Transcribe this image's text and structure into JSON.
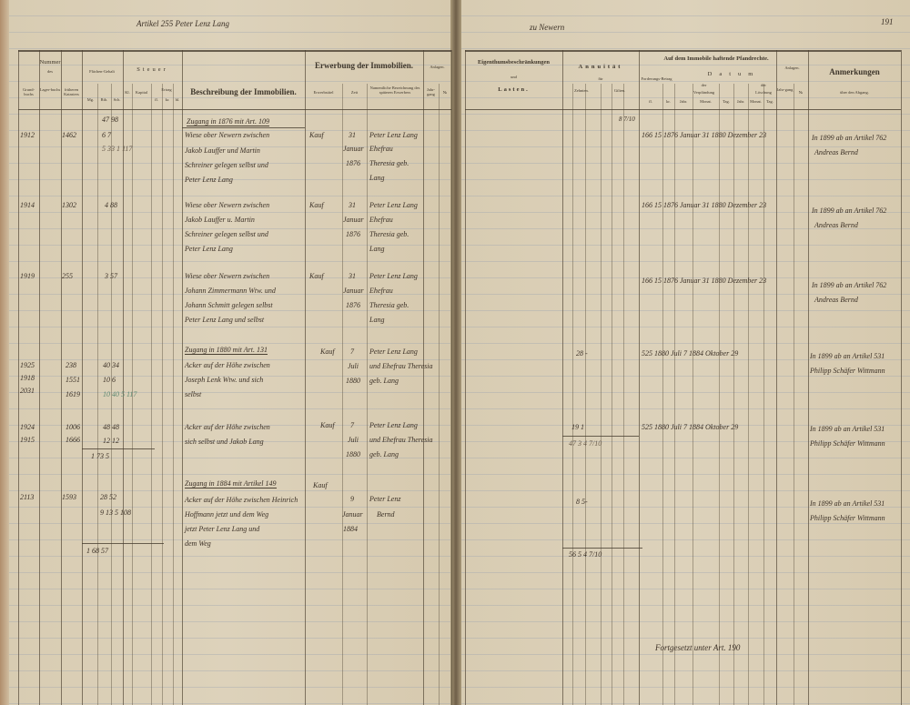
{
  "top": {
    "article": "Artikel 255 Peter Lenz Lang",
    "location": "zu Newern",
    "page_number": "191"
  },
  "left_headers": {
    "nummer": "Nummer",
    "des": "des",
    "grundbuch": "Grund-buchs",
    "lagerbuch": "Lager-buchs",
    "kataster": "früheren Katasters",
    "flaechen": "Flächen-Gehalt",
    "flaeche_units": [
      "Mg.",
      "Rth.",
      "Sch."
    ],
    "steuer": "Steuer",
    "steuer_cols": [
      "Kl.",
      "Kapital",
      "Ertrag",
      "fl.",
      "kr.",
      "hl."
    ],
    "beschreibung": "Beschreibung der Immobilien.",
    "erwerbung": "Erwerbung der Immobilien.",
    "erwerbstitel": "Erwerbstitel",
    "zeit": "Zeit",
    "vorbesitzer": "Namentliche Bezeichnung des späteren Erwerbers",
    "anlagen": "Anlagen.",
    "jahrgang": "Jahr-gang",
    "nr": "№"
  },
  "right_headers": {
    "eigentum": "Eigenthumsbeschränkungen",
    "und": "und",
    "lasten": "Lasten.",
    "annuitaet": "Annuität",
    "fuer": "für",
    "zehnten": "Zehnten.",
    "gilten": "Gilten.",
    "money_units": [
      "fl.",
      "kr.",
      "hl."
    ],
    "pfandrechte": "Auf dem Immobile haftende Pfandrechte.",
    "forderung": "Forderungs-Betrag",
    "fl": "fl.",
    "kr": "kr.",
    "datum": "Datum",
    "der": "der",
    "verpfaendung": "Verpfändung",
    "loeschung": "Löschung",
    "date_units": [
      "Jahr.",
      "Monat.",
      "Tag."
    ],
    "anlagen": "Anlagen.",
    "jahrgang": "Jahr-gang",
    "nr": "№",
    "anmerkungen": "Anmerkungen",
    "abgang": "über den Abgang."
  },
  "entries": [
    {
      "heading": "Zugang in 1876 mit Art. 109",
      "area_total": "47 98",
      "grundbuch": "1912",
      "kataster": "1462",
      "area": "6 7",
      "area2": "5 33 1 117",
      "desc": [
        "Wiese ober Newern zwischen",
        "Jakob Lauffer und Martin",
        "Schreiner gelegen selbst und",
        "Peter Lenz Lang"
      ],
      "titel": "Kauf",
      "zeit": [
        "31",
        "Januar",
        "1876"
      ],
      "erwerber": [
        "Peter Lenz Lang",
        "Ehefrau",
        "Theresia geb.",
        "Lang"
      ],
      "annuity": "8 7/10",
      "pfand": "166  15  1876 Januar 31  1880 Dezember 23",
      "remark": [
        "In 1899 ab an Artikel 762",
        "Andreas Bernd"
      ]
    },
    {
      "grundbuch": "1914",
      "kataster": "1302",
      "area": "4 88",
      "desc": [
        "Wiese ober Newern zwischen",
        "Jakob Lauffer u. Martin",
        "Schreiner gelegen selbst und",
        "Peter Lenz Lang"
      ],
      "titel": "Kauf",
      "zeit": [
        "31",
        "Januar",
        "1876"
      ],
      "erwerber": [
        "Peter Lenz Lang",
        "Ehefrau",
        "Theresia geb.",
        "Lang"
      ],
      "pfand": "166  15  1876 Januar 31  1880 Dezember 23",
      "remark": [
        "In 1899 ab an Artikel 762",
        "Andreas Bernd"
      ]
    },
    {
      "grundbuch": "1919",
      "kataster": "255",
      "area": "3 57",
      "desc": [
        "Wiese ober Newern zwischen",
        "Johann Zimmermann Wtw. und",
        "Johann Schmitt gelegen selbst",
        "Peter Lenz Lang und selbst"
      ],
      "titel": "Kauf",
      "zeit": [
        "31",
        "Januar",
        "1876"
      ],
      "erwerber": [
        "Peter Lenz Lang",
        "Ehefrau",
        "Theresia geb.",
        "Lang"
      ],
      "pfand": "166  15  1876 Januar 31  1880 Dezember 23",
      "remark": [
        "In 1899 ab an Artikel 762",
        "Andreas Bernd"
      ]
    },
    {
      "heading": "Zugang in 1880 mit Art. 131",
      "grundbuch": [
        "1925",
        "1918",
        "2031"
      ],
      "kataster": [
        "238",
        "1551",
        "1619"
      ],
      "area": [
        "40 34",
        "10 6",
        "10 40 5 117"
      ],
      "desc": [
        "Acker auf der Höhe zwischen",
        "Joseph Lenk Wtw. und sich",
        "selbst"
      ],
      "titel": "Kauf",
      "zeit": [
        "7",
        "Juli",
        "1880"
      ],
      "erwerber": [
        "Peter Lenz Lang",
        "und Ehefrau Theresia",
        "geb. Lang"
      ],
      "annuity": "28 -",
      "pfand": "525  1880 Juli 7  1884 Oktober 29",
      "remark": [
        "In 1899 ab an Artikel 531",
        "Philipp Schäfer Wittmann"
      ]
    },
    {
      "grundbuch": [
        "1924",
        "1915"
      ],
      "kataster": [
        "1006",
        "1666"
      ],
      "area": [
        "48 48",
        "12 12",
        "1 73 5"
      ],
      "desc": [
        "Acker auf der Höhe zwischen",
        "sich selbst und Jakob Lang"
      ],
      "titel": "Kauf",
      "zeit": [
        "7",
        "Juli",
        "1880"
      ],
      "erwerber": [
        "Peter Lenz Lang",
        "und Ehefrau Theresia",
        "geb. Lang"
      ],
      "annuity": "19 1",
      "annuity_sum": "47 3   4 7/10",
      "pfand": "525  1880 Juli 7  1884 Oktober 29",
      "remark": [
        "In 1899 ab an Artikel 531",
        "Philipp Schäfer Wittmann"
      ]
    },
    {
      "heading": "Zugang in 1884 mit Artikel 149",
      "grundbuch": "2113",
      "kataster": "1593",
      "area": [
        "28 52",
        "9 13 5 108"
      ],
      "desc": [
        "Acker auf der Höhe zwischen Heinrich",
        "Hoffmann jetzt und dem Weg",
        "jetzt Peter Lenz Lang und",
        "dem Weg"
      ],
      "titel": "Kauf",
      "zeit": [
        "9",
        "Januar",
        "1884"
      ],
      "erwerber": [
        "Peter Lenz",
        "Bernd"
      ],
      "annuity": "8 5-",
      "remark": [
        "In 1899 ab an Artikel 531",
        "Philipp Schäfer Wittmann"
      ]
    }
  ],
  "totals": {
    "area": "1 68 57",
    "annuity": "56 5   4 7/10"
  },
  "footer": "Fortgesetzt unter Art. 190",
  "colors": {
    "paper": "#d8ccb2",
    "ink": "#3b3026",
    "rule": "#96a0af"
  }
}
